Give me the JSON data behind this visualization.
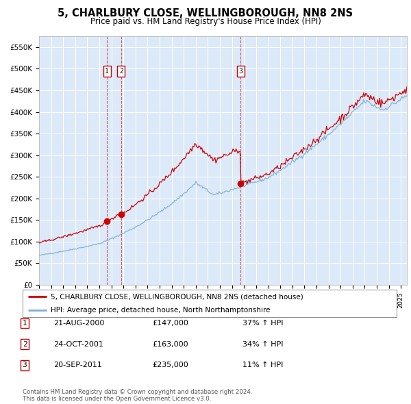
{
  "title": "5, CHARLBURY CLOSE, WELLINGBOROUGH, NN8 2NS",
  "subtitle": "Price paid vs. HM Land Registry's House Price Index (HPI)",
  "background_color": "#dce9f8",
  "plot_bg_color": "#dce9f8",
  "sales": [
    {
      "date_decimal": 2000.6389,
      "price": 147000,
      "label": "1"
    },
    {
      "date_decimal": 2001.8056,
      "price": 163000,
      "label": "2"
    },
    {
      "date_decimal": 2011.7222,
      "price": 235000,
      "label": "3"
    }
  ],
  "legend_entries": [
    "5, CHARLBURY CLOSE, WELLINGBOROUGH, NN8 2NS (detached house)",
    "HPI: Average price, detached house, North Northamptonshire"
  ],
  "table_rows": [
    [
      "1",
      "21-AUG-2000",
      "£147,000",
      "37% ↑ HPI"
    ],
    [
      "2",
      "24-OCT-2001",
      "£163,000",
      "34% ↑ HPI"
    ],
    [
      "3",
      "20-SEP-2011",
      "£235,000",
      "11% ↑ HPI"
    ]
  ],
  "footer": "Contains HM Land Registry data © Crown copyright and database right 2024.\nThis data is licensed under the Open Government Licence v3.0.",
  "ylabel_ticks": [
    "£0",
    "£50K",
    "£100K",
    "£150K",
    "£200K",
    "£250K",
    "£300K",
    "£350K",
    "£400K",
    "£450K",
    "£500K",
    "£550K"
  ],
  "ytick_values": [
    0,
    50000,
    100000,
    150000,
    200000,
    250000,
    300000,
    350000,
    400000,
    450000,
    500000,
    550000
  ],
  "red_line_color": "#cc0000",
  "blue_line_color": "#7bafd4",
  "marker_color": "#cc0000",
  "xlim": [
    1995,
    2025.5
  ],
  "ylim": [
    0,
    575000
  ]
}
